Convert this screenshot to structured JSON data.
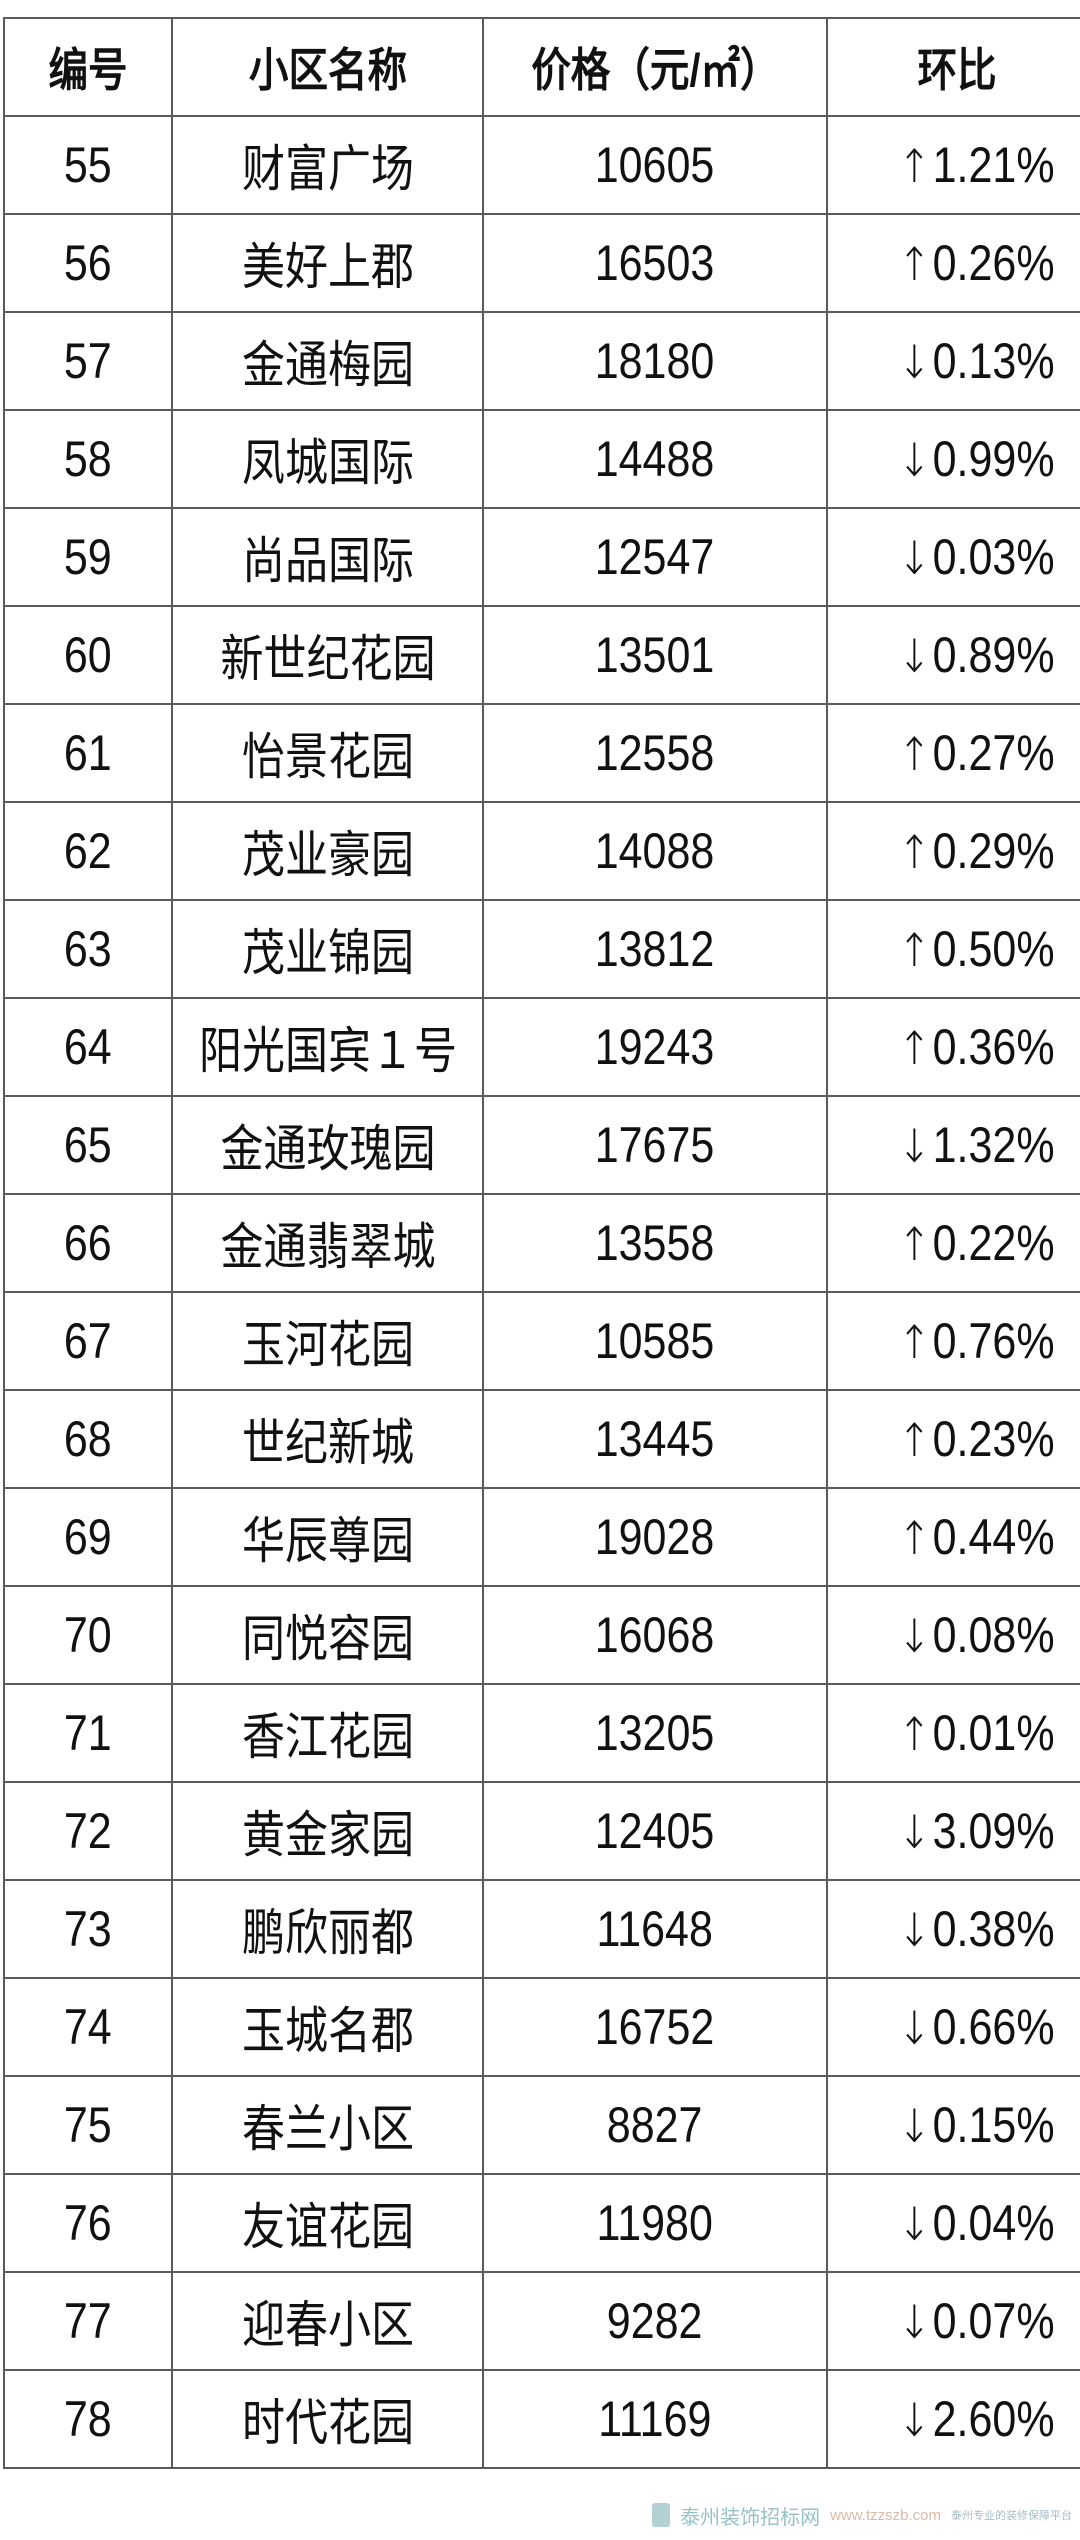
{
  "table": {
    "headers": [
      "编号",
      "小区名称",
      "价格（元/㎡）",
      "环比"
    ],
    "rows": [
      {
        "id": "55",
        "name": "财富广场",
        "price": "10605",
        "dir": "↑",
        "change": "1.21%"
      },
      {
        "id": "56",
        "name": "美好上郡",
        "price": "16503",
        "dir": "↑",
        "change": "0.26%"
      },
      {
        "id": "57",
        "name": "金通梅园",
        "price": "18180",
        "dir": "↓",
        "change": "0.13%"
      },
      {
        "id": "58",
        "name": "凤城国际",
        "price": "14488",
        "dir": "↓",
        "change": "0.99%"
      },
      {
        "id": "59",
        "name": "尚品国际",
        "price": "12547",
        "dir": "↓",
        "change": "0.03%"
      },
      {
        "id": "60",
        "name": "新世纪花园",
        "price": "13501",
        "dir": "↓",
        "change": "0.89%"
      },
      {
        "id": "61",
        "name": "怡景花园",
        "price": "12558",
        "dir": "↑",
        "change": "0.27%"
      },
      {
        "id": "62",
        "name": "茂业豪园",
        "price": "14088",
        "dir": "↑",
        "change": "0.29%"
      },
      {
        "id": "63",
        "name": "茂业锦园",
        "price": "13812",
        "dir": "↑",
        "change": "0.50%"
      },
      {
        "id": "64",
        "name": "阳光国宾１号",
        "price": "19243",
        "dir": "↑",
        "change": "0.36%"
      },
      {
        "id": "65",
        "name": "金通玫瑰园",
        "price": "17675",
        "dir": "↓",
        "change": "1.32%"
      },
      {
        "id": "66",
        "name": "金通翡翠城",
        "price": "13558",
        "dir": "↑",
        "change": "0.22%"
      },
      {
        "id": "67",
        "name": "玉河花园",
        "price": "10585",
        "dir": "↑",
        "change": "0.76%"
      },
      {
        "id": "68",
        "name": "世纪新城",
        "price": "13445",
        "dir": "↑",
        "change": "0.23%"
      },
      {
        "id": "69",
        "name": "华辰尊园",
        "price": "19028",
        "dir": "↑",
        "change": "0.44%"
      },
      {
        "id": "70",
        "name": "同悦容园",
        "price": "16068",
        "dir": "↓",
        "change": "0.08%"
      },
      {
        "id": "71",
        "name": "香江花园",
        "price": "13205",
        "dir": "↑",
        "change": "0.01%"
      },
      {
        "id": "72",
        "name": "黄金家园",
        "price": "12405",
        "dir": "↓",
        "change": "3.09%"
      },
      {
        "id": "73",
        "name": "鹏欣丽都",
        "price": "11648",
        "dir": "↓",
        "change": "0.38%"
      },
      {
        "id": "74",
        "name": "玉城名郡",
        "price": "16752",
        "dir": "↓",
        "change": "0.66%"
      },
      {
        "id": "75",
        "name": "春兰小区",
        "price": "8827",
        "dir": "↓",
        "change": "0.15%"
      },
      {
        "id": "76",
        "name": "友谊花园",
        "price": "11980",
        "dir": "↓",
        "change": "0.04%"
      },
      {
        "id": "77",
        "name": "迎春小区",
        "price": "9282",
        "dir": "↓",
        "change": "0.07%"
      },
      {
        "id": "78",
        "name": "时代花园",
        "price": "11169",
        "dir": "↓",
        "change": "2.60%"
      }
    ]
  },
  "watermark": {
    "name": "泰州装饰招标网",
    "url": "www.tzzszb.com",
    "slogan": "泰州专业的装修保障平台"
  }
}
